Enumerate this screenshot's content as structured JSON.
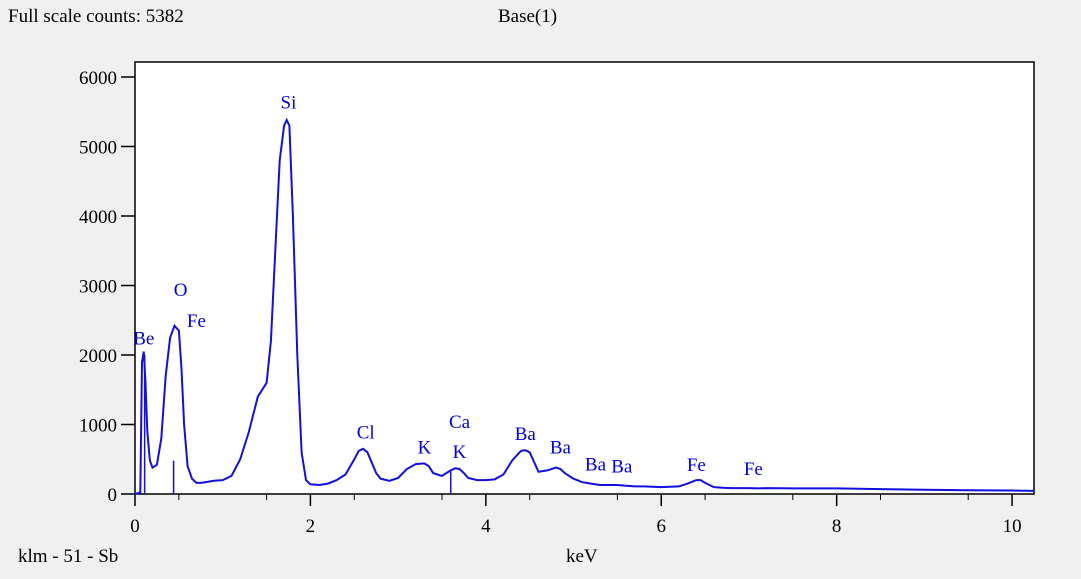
{
  "header": {
    "full_scale": "Full scale counts: 5382",
    "title": "Base(1)"
  },
  "footer": {
    "label": "klm - 51 - Sb",
    "xlabel": "keV"
  },
  "colors": {
    "spectrum": "#1010e0",
    "axes": "#000000",
    "background": "#f0f0f0",
    "plot_background": "#ffffff"
  },
  "chart_data": {
    "type": "line",
    "title": "Base(1)",
    "xlabel": "keV",
    "ylabel": "",
    "xlim": [
      0,
      10.25
    ],
    "ylim": [
      0,
      6000
    ],
    "grid": false,
    "x_ticks": [
      0,
      2,
      4,
      6,
      8,
      10
    ],
    "y_ticks": [
      0,
      1000,
      2000,
      3000,
      4000,
      5000,
      6000
    ],
    "series": [
      {
        "x": [
          0,
          0.06,
          0.08,
          0.1,
          0.12,
          0.14,
          0.17,
          0.2,
          0.25,
          0.3,
          0.35,
          0.4,
          0.45,
          0.5,
          0.53,
          0.56,
          0.6,
          0.65,
          0.7,
          0.75,
          0.8,
          0.9,
          1.0,
          1.1,
          1.2,
          1.3,
          1.4,
          1.45,
          1.5,
          1.55,
          1.6,
          1.65,
          1.7,
          1.73,
          1.76,
          1.8,
          1.85,
          1.9,
          1.95,
          2.0,
          2.1,
          2.2,
          2.3,
          2.4,
          2.5,
          2.55,
          2.6,
          2.65,
          2.7,
          2.75,
          2.8,
          2.9,
          3.0,
          3.1,
          3.2,
          3.3,
          3.35,
          3.4,
          3.5,
          3.6,
          3.65,
          3.7,
          3.75,
          3.8,
          3.9,
          4.0,
          4.1,
          4.2,
          4.3,
          4.4,
          4.45,
          4.5,
          4.55,
          4.6,
          4.7,
          4.8,
          4.85,
          4.9,
          5.0,
          5.1,
          5.2,
          5.3,
          5.4,
          5.5,
          5.6,
          5.7,
          5.8,
          6.0,
          6.2,
          6.3,
          6.4,
          6.45,
          6.5,
          6.6,
          6.7,
          6.8,
          7.0,
          7.1,
          7.2,
          7.5,
          8.0,
          8.5,
          9.0,
          9.5,
          10.0,
          10.25
        ],
        "values": [
          0,
          20,
          1900,
          2050,
          1600,
          900,
          480,
          380,
          420,
          800,
          1700,
          2250,
          2420,
          2350,
          1800,
          1000,
          400,
          220,
          160,
          160,
          170,
          190,
          200,
          260,
          500,
          900,
          1400,
          1500,
          1600,
          2200,
          3500,
          4800,
          5300,
          5382,
          5300,
          4000,
          2000,
          600,
          200,
          140,
          130,
          150,
          200,
          280,
          500,
          620,
          650,
          600,
          450,
          300,
          220,
          190,
          230,
          360,
          430,
          440,
          400,
          300,
          260,
          340,
          370,
          360,
          300,
          230,
          200,
          200,
          210,
          280,
          480,
          620,
          630,
          600,
          460,
          320,
          340,
          380,
          360,
          300,
          220,
          170,
          150,
          130,
          130,
          130,
          120,
          110,
          110,
          100,
          110,
          150,
          200,
          200,
          160,
          100,
          90,
          85,
          85,
          80,
          85,
          80,
          80,
          70,
          60,
          55,
          50,
          45
        ]
      }
    ],
    "markers": [
      {
        "x": 0.11,
        "value": 2000
      },
      {
        "x": 0.44,
        "value": 480
      },
      {
        "x": 3.6,
        "value": 350
      }
    ],
    "annotations": [
      {
        "text": "Be",
        "x": 0.1,
        "y": 2150
      },
      {
        "text": "O",
        "x": 0.52,
        "y": 2850
      },
      {
        "text": "Fe",
        "x": 0.7,
        "y": 2400
      },
      {
        "text": "Si",
        "x": 1.75,
        "y": 5550
      },
      {
        "text": "Cl",
        "x": 2.63,
        "y": 800
      },
      {
        "text": "K",
        "x": 3.3,
        "y": 580
      },
      {
        "text": "Ca",
        "x": 3.7,
        "y": 950
      },
      {
        "text": "K",
        "x": 3.7,
        "y": 520
      },
      {
        "text": "Ba",
        "x": 4.45,
        "y": 780
      },
      {
        "text": "Ba",
        "x": 4.85,
        "y": 580
      },
      {
        "text": "Ba",
        "x": 5.25,
        "y": 340
      },
      {
        "text": "Ba",
        "x": 5.55,
        "y": 310
      },
      {
        "text": "Fe",
        "x": 6.4,
        "y": 330
      },
      {
        "text": "Fe",
        "x": 7.05,
        "y": 270
      }
    ]
  }
}
